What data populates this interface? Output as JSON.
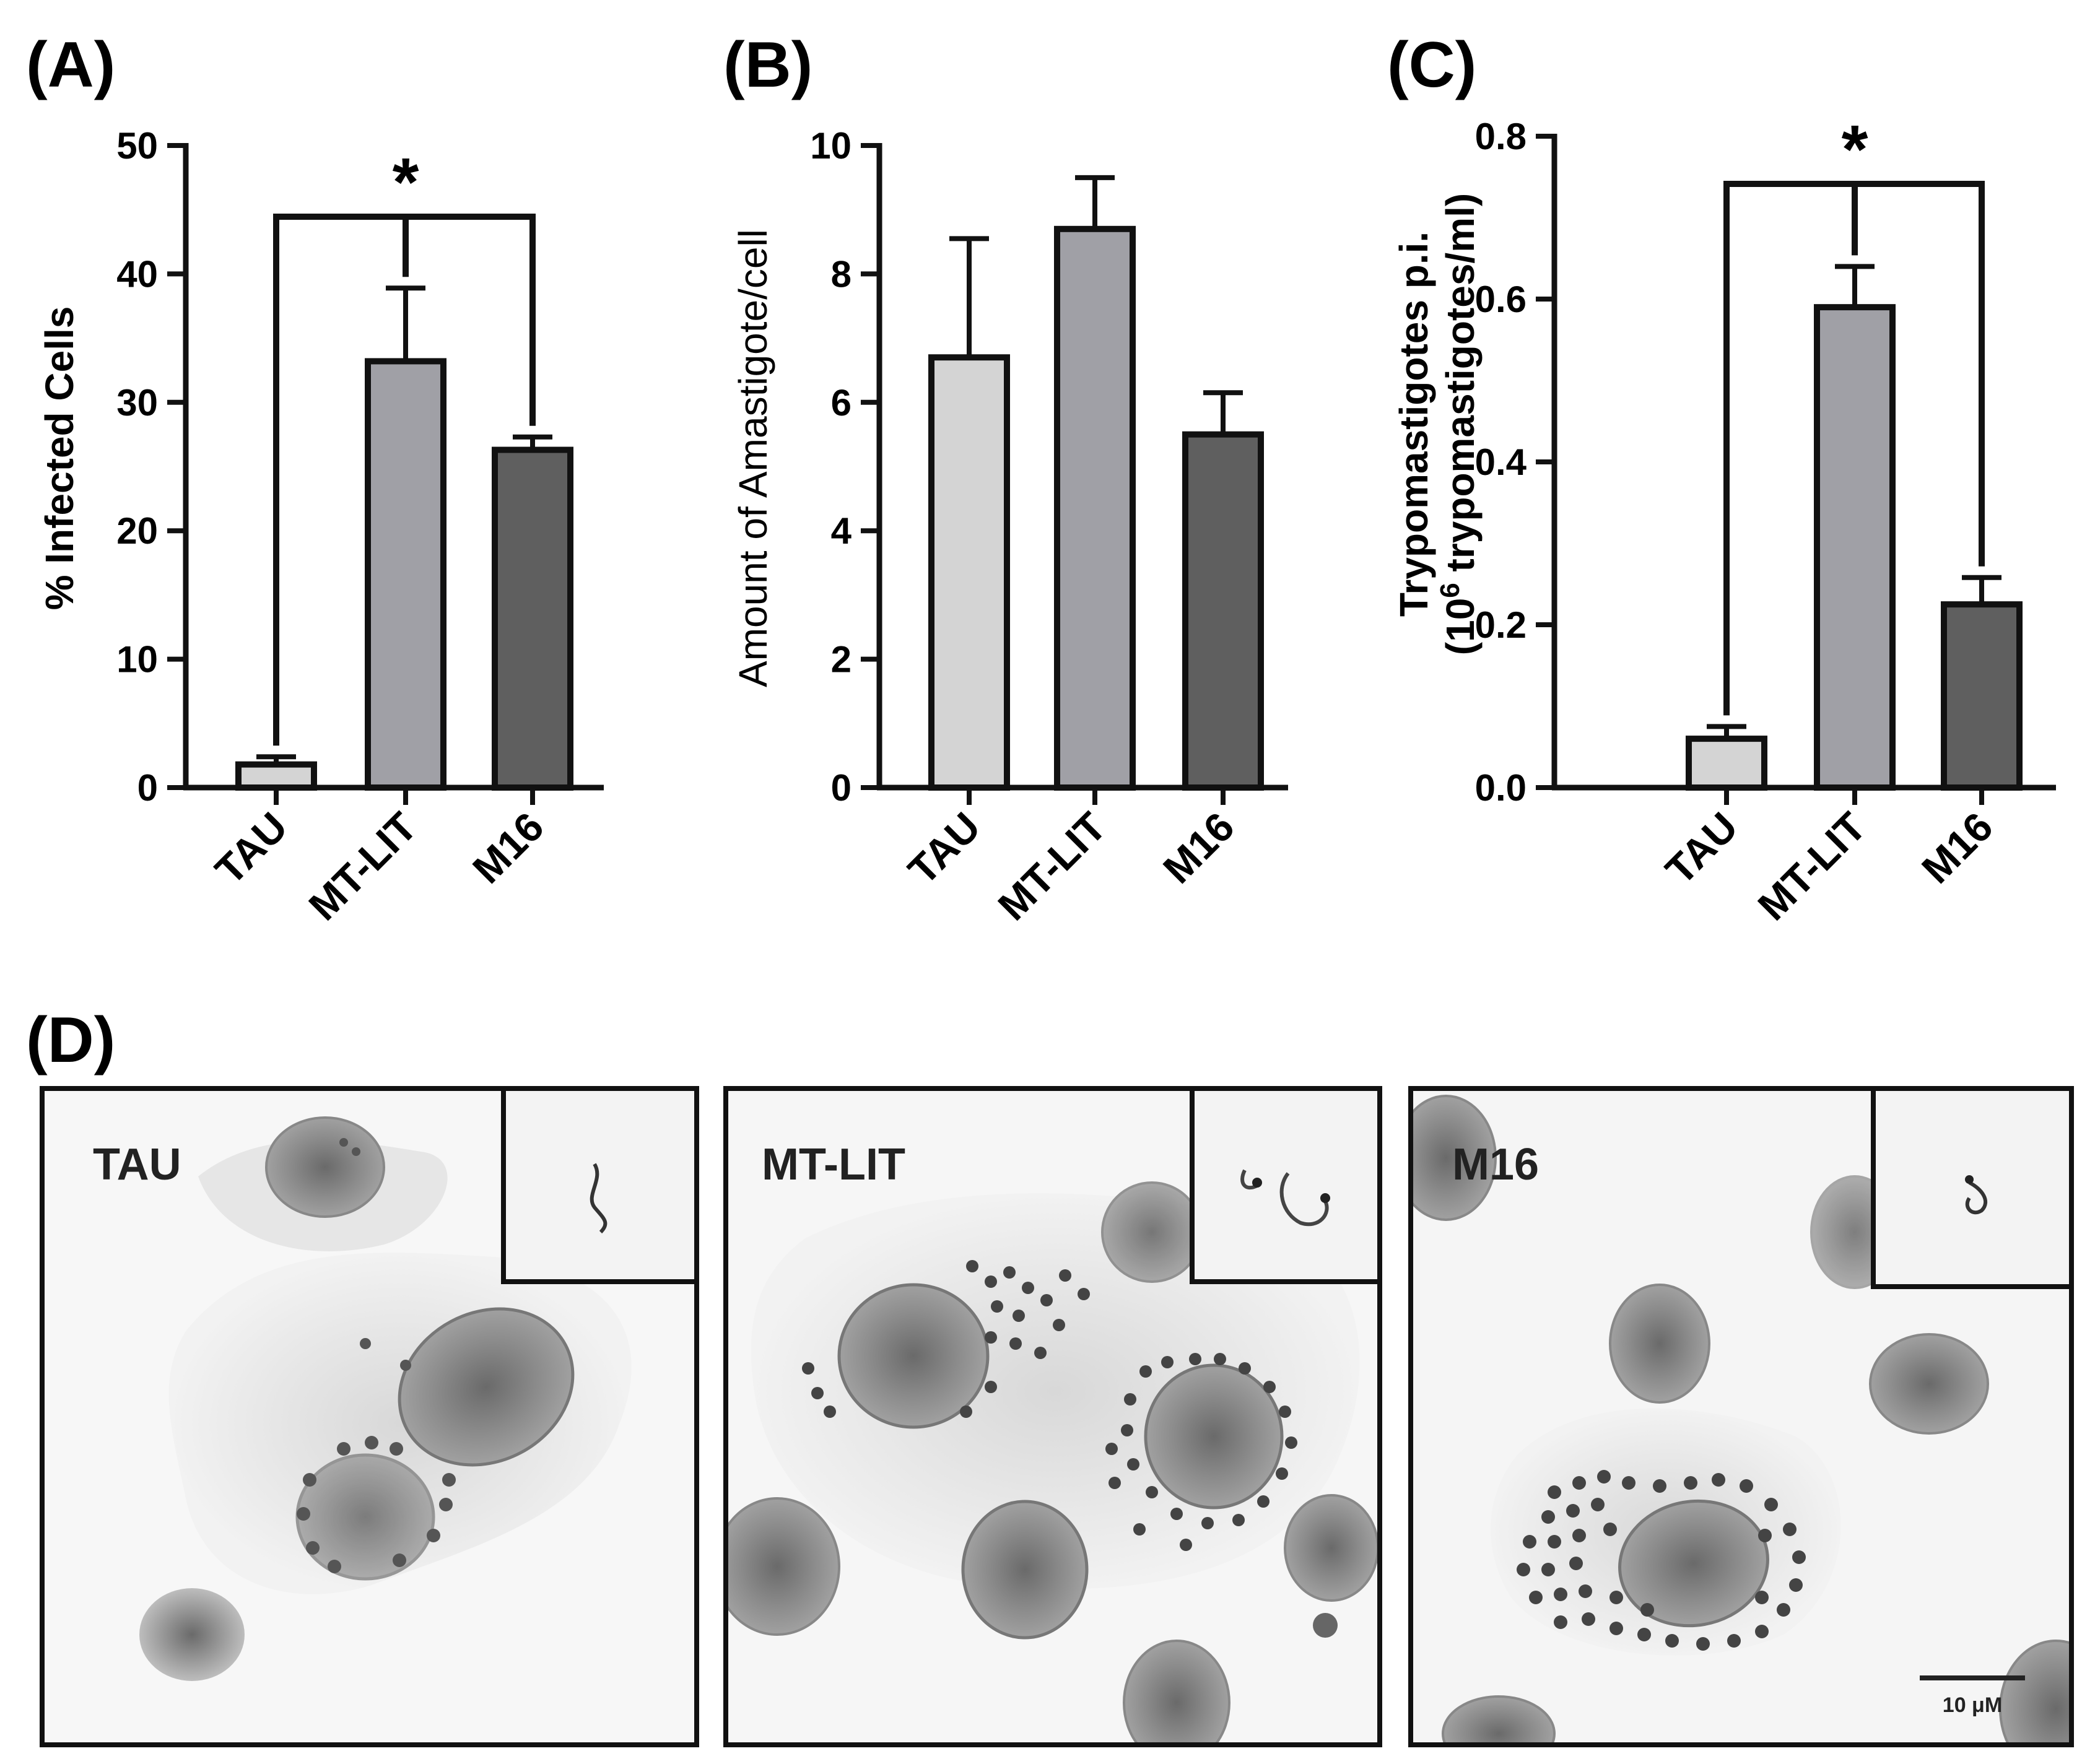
{
  "panels": {
    "A": "(A)",
    "B": "(B)",
    "C": "(C)",
    "D": "(D)"
  },
  "colors": {
    "TAU": "#d4d4d4",
    "MT-LIT": "#a0a0a6",
    "M16": "#5f5f5f",
    "outline": "#111111"
  },
  "chart_data": [
    {
      "panel": "A",
      "type": "bar",
      "title": "",
      "categories": [
        "TAU",
        "MT-LIT",
        "M16"
      ],
      "values": [
        1.8,
        33.2,
        26.3
      ],
      "errors": [
        0.6,
        5.7,
        1.0
      ],
      "xlabel": "",
      "ylabel": "% Infected Cells",
      "ylim": [
        0,
        50
      ],
      "yticks": [
        "0",
        "10",
        "20",
        "30",
        "40",
        "50"
      ],
      "significance": {
        "from": "TAU",
        "to": "M16",
        "through": "MT-LIT",
        "label": "*"
      }
    },
    {
      "panel": "B",
      "type": "bar",
      "title": "",
      "categories": [
        "TAU",
        "MT-LIT",
        "M16"
      ],
      "values": [
        6.7,
        8.7,
        5.5
      ],
      "errors": [
        1.85,
        0.8,
        0.65
      ],
      "xlabel": "",
      "ylabel": "Amount of Amastigote/cell",
      "ylim": [
        0,
        10
      ],
      "yticks": [
        "0",
        "2",
        "4",
        "6",
        "8",
        "10"
      ]
    },
    {
      "panel": "C",
      "type": "bar",
      "title": "",
      "categories": [
        "TAU",
        "MT-LIT",
        "M16"
      ],
      "values": [
        0.06,
        0.59,
        0.225
      ],
      "errors": [
        0.015,
        0.05,
        0.033
      ],
      "xlabel": "",
      "ylabel_line1": "Trypomastigotes p.i.",
      "ylabel_line2_pre": "(10",
      "ylabel_line2_sup": "6",
      "ylabel_line2_post": " trypomastigotes/ml)",
      "ylim": [
        0,
        0.8
      ],
      "yticks": [
        "0.0",
        "0.2",
        "0.4",
        "0.6",
        "0.8"
      ],
      "significance": {
        "from": "TAU",
        "to": "M16",
        "through": "MT-LIT",
        "label": "*"
      }
    }
  ],
  "micrographs": [
    {
      "label": "TAU"
    },
    {
      "label": "MT-LIT"
    },
    {
      "label": "M16",
      "scale_bar": "10 μM"
    }
  ]
}
